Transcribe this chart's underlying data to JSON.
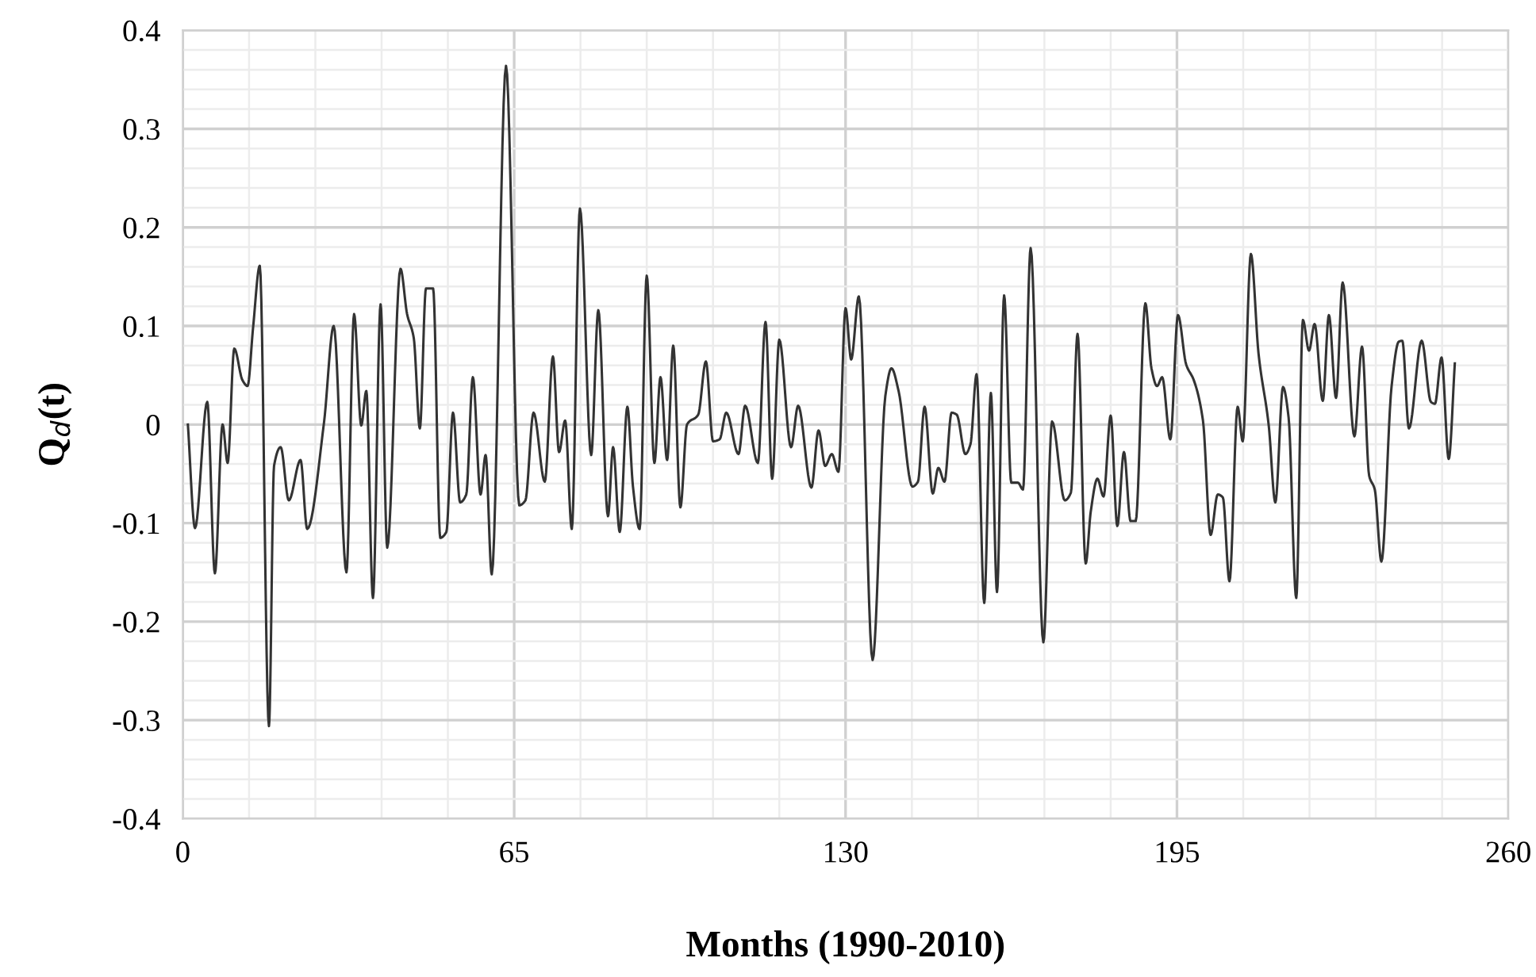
{
  "chart_data": {
    "type": "line",
    "xlabel": "Months (1990-2010)",
    "ylabel": "Q$_{d}$(t)",
    "xlim": [
      0,
      260
    ],
    "xticks": [
      0,
      {
        "value": 13,
        "label": null
      },
      {
        "value": 26,
        "label": null
      },
      {
        "value": 39,
        "label": null
      },
      {
        "value": 52,
        "label": null
      },
      65,
      {
        "value": 78,
        "label": null
      },
      {
        "value": 91,
        "label": null
      },
      {
        "value": 104,
        "label": null
      },
      {
        "value": 117,
        "label": null
      },
      130,
      {
        "value": 143,
        "label": null
      },
      {
        "value": 156,
        "label": null
      },
      {
        "value": 169,
        "label": null
      },
      {
        "value": 182,
        "label": null
      },
      195,
      {
        "value": 208,
        "label": null
      },
      {
        "value": 221,
        "label": null
      },
      {
        "value": 234,
        "label": null
      },
      {
        "value": 247,
        "label": null
      },
      260
    ],
    "ylim": [
      -0.4,
      0.4
    ],
    "yticks": [
      {
        "value": -0.4,
        "label": "-0.4"
      },
      {
        "value": -0.38,
        "label": null
      },
      {
        "value": -0.36,
        "label": null
      },
      {
        "value": -0.34,
        "label": null
      },
      {
        "value": -0.32,
        "label": null
      },
      {
        "value": -0.3,
        "label": "-0.3"
      },
      {
        "value": -0.28,
        "label": null
      },
      {
        "value": -0.26,
        "label": null
      },
      {
        "value": -0.24,
        "label": null
      },
      {
        "value": -0.22,
        "label": null
      },
      {
        "value": -0.2,
        "label": "-0.2"
      },
      {
        "value": -0.18,
        "label": null
      },
      {
        "value": -0.16,
        "label": null
      },
      {
        "value": -0.14,
        "label": null
      },
      {
        "value": -0.12,
        "label": null
      },
      {
        "value": -0.1,
        "label": "-0.1"
      },
      {
        "value": -0.08,
        "label": null
      },
      {
        "value": -0.06,
        "label": null
      },
      {
        "value": -0.04,
        "label": null
      },
      {
        "value": -0.02,
        "label": null
      },
      0,
      {
        "value": 0.02,
        "label": null
      },
      {
        "value": 0.04,
        "label": null
      },
      {
        "value": 0.06,
        "label": null
      },
      {
        "value": 0.08,
        "label": null
      },
      0.1,
      {
        "value": 0.12,
        "label": null
      },
      {
        "value": 0.14,
        "label": null
      },
      {
        "value": 0.16,
        "label": null
      },
      {
        "value": 0.18,
        "label": null
      },
      0.2,
      {
        "value": 0.22,
        "label": null
      },
      {
        "value": 0.24,
        "label": null
      },
      {
        "value": 0.26,
        "label": null
      },
      {
        "value": 0.28,
        "label": null
      },
      0.3,
      {
        "value": 0.32,
        "label": null
      },
      {
        "value": 0.34,
        "label": null
      },
      {
        "value": 0.36,
        "label": null
      },
      {
        "value": 0.38,
        "label": null
      },
      0.4
    ],
    "grid": true,
    "series": [
      {
        "color": "#333333",
        "x": [
          1.0,
          2.4,
          4.8,
          6.3,
          7.8,
          8.8,
          10.1,
          11.7,
          12.7,
          13.8,
          15.1,
          16.9,
          17.9,
          19.2,
          20.8,
          23.1,
          24.4,
          27.7,
          29.6,
          32.1,
          33.6,
          35.0,
          36.0,
          37.3,
          38.8,
          40.1,
          42.7,
          44.0,
          45.3,
          46.5,
          47.7,
          49.1,
          50.5,
          51.7,
          53.0,
          54.4,
          55.6,
          56.9,
          58.4,
          59.4,
          60.6,
          63.4,
          66.0,
          67.2,
          68.8,
          71.0,
          72.6,
          73.8,
          75.0,
          76.3,
          77.9,
          80.1,
          81.5,
          83.4,
          84.4,
          85.7,
          87.2,
          88.3,
          89.6,
          91.0,
          92.5,
          93.7,
          95.0,
          96.2,
          97.6,
          98.9,
          101.1,
          102.6,
          104.0,
          105.3,
          106.6,
          109.0,
          110.3,
          112.8,
          114.3,
          115.6,
          117.0,
          119.3,
          120.7,
          123.3,
          124.7,
          126.0,
          127.3,
          128.6,
          130.0,
          131.1,
          132.6,
          135.3,
          137.8,
          139.0,
          140.4,
          143.1,
          144.2,
          145.5,
          147.1,
          148.2,
          149.4,
          150.8,
          151.8,
          153.5,
          154.5,
          155.7,
          157.2,
          158.5,
          159.7,
          161.1,
          162.5,
          163.8,
          164.8,
          166.3,
          168.8,
          170.5,
          173.0,
          174.2,
          175.5,
          177.1,
          178.1,
          179.4,
          180.6,
          182.0,
          183.3,
          184.6,
          185.9,
          186.9,
          188.8,
          190.0,
          191.1,
          192.1,
          193.7,
          195.2,
          196.8,
          198.3,
          200.1,
          201.6,
          203.0,
          204.0,
          205.3,
          206.9,
          207.9,
          209.5,
          211.0,
          213.0,
          214.3,
          215.8,
          216.9,
          218.4,
          219.7,
          220.9,
          222.0,
          223.6,
          224.8,
          226.2,
          227.5,
          229.8,
          231.3,
          232.7,
          233.8,
          235.1,
          237.1,
          238.5,
          239.2,
          240.5,
          243.0,
          244.8,
          245.6,
          246.9,
          248.3,
          249.5
        ],
        "values": [
          0,
          -0.105,
          0.023,
          -0.151,
          0,
          -0.039,
          0.077,
          0.045,
          0.039,
          0.099,
          0.161,
          -0.306,
          -0.042,
          -0.023,
          -0.077,
          -0.036,
          -0.106,
          0.002,
          0.1,
          -0.15,
          0.112,
          -0.001,
          0.034,
          -0.176,
          0.122,
          -0.125,
          0.158,
          0.112,
          0.088,
          -0.004,
          0.138,
          0.138,
          -0.115,
          -0.109,
          0.012,
          -0.079,
          -0.071,
          0.048,
          -0.071,
          -0.031,
          -0.152,
          0.364,
          -0.082,
          -0.077,
          0.012,
          -0.058,
          0.069,
          -0.028,
          0.004,
          -0.106,
          0.219,
          -0.031,
          0.116,
          -0.093,
          -0.023,
          -0.109,
          0.018,
          -0.063,
          -0.106,
          0.151,
          -0.039,
          0.048,
          -0.036,
          0.08,
          -0.084,
          0,
          0.01,
          0.064,
          -0.017,
          -0.015,
          0.012,
          -0.03,
          0.019,
          -0.039,
          0.104,
          -0.055,
          0.086,
          -0.023,
          0.019,
          -0.064,
          -0.006,
          -0.042,
          -0.03,
          -0.048,
          0.118,
          0.066,
          0.13,
          -0.239,
          0.029,
          0.057,
          0.034,
          -0.063,
          -0.058,
          0.018,
          -0.07,
          -0.044,
          -0.058,
          0.012,
          0.01,
          -0.03,
          -0.02,
          0.051,
          -0.181,
          0.032,
          -0.17,
          0.131,
          -0.059,
          -0.059,
          -0.066,
          0.179,
          -0.221,
          0.003,
          -0.077,
          -0.069,
          0.092,
          -0.141,
          -0.088,
          -0.055,
          -0.073,
          0.009,
          -0.103,
          -0.028,
          -0.098,
          -0.098,
          0.123,
          0.057,
          0.039,
          0.048,
          -0.015,
          0.111,
          0.061,
          0.045,
          0.004,
          -0.112,
          -0.071,
          -0.074,
          -0.159,
          0.018,
          -0.017,
          0.173,
          0.072,
          -0.001,
          -0.079,
          0.038,
          0.007,
          -0.176,
          0.106,
          0.075,
          0.102,
          0.024,
          0.111,
          0.027,
          0.144,
          -0.012,
          0.079,
          -0.052,
          -0.066,
          -0.139,
          0.039,
          0.084,
          0.085,
          -0.004,
          0.085,
          0.023,
          0.021,
          0.068,
          -0.035,
          0.062
        ]
      }
    ]
  }
}
